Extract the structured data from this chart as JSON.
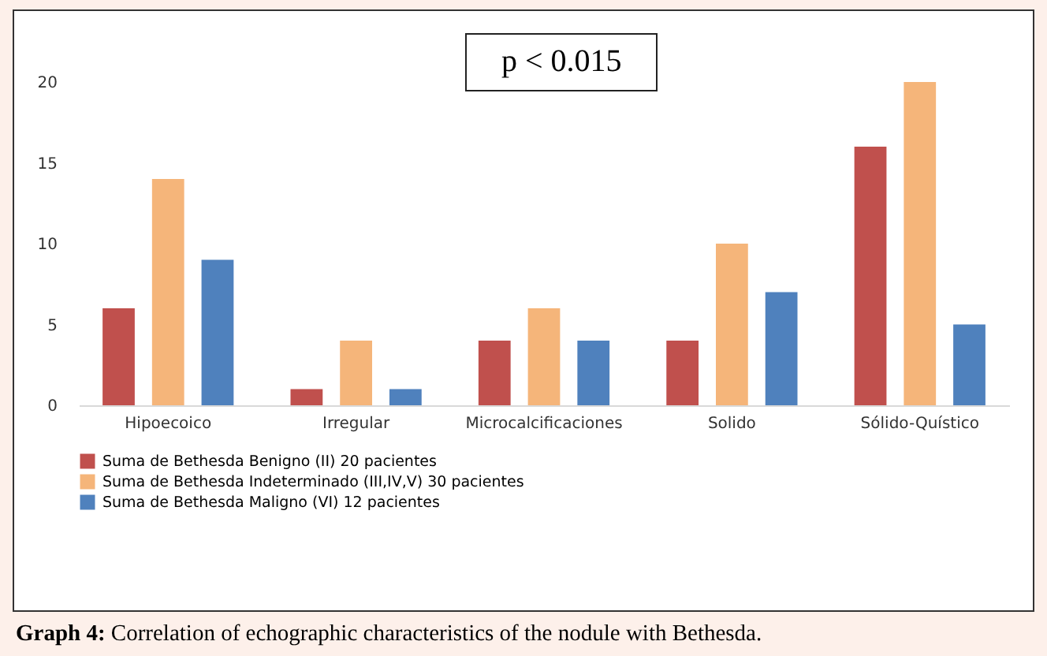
{
  "chart_data": {
    "type": "bar",
    "categories": [
      "Hipoecoico",
      "Irregular",
      "Microcalcificaciones",
      "Solido",
      "Sólido-Quístico"
    ],
    "series": [
      {
        "name": "Suma de Bethesda Benigno (II) 20 pacientes",
        "color": "#c0504d",
        "values": [
          6,
          1,
          4,
          4,
          16
        ]
      },
      {
        "name": "Suma de Bethesda Indeterminado (III,IV,V) 30 pacientes",
        "color": "#f5b57a",
        "values": [
          14,
          4,
          6,
          10,
          20
        ]
      },
      {
        "name": "Suma de Bethesda Maligno (VI) 12 pacientes",
        "color": "#4f81bd",
        "values": [
          9,
          1,
          4,
          7,
          5
        ]
      }
    ],
    "ylim": [
      0,
      20
    ],
    "yticks": [
      0,
      5,
      10,
      15,
      20
    ],
    "grid": false,
    "legend": "bottom",
    "annotations": [
      "p < 0.015",
      "Graph 4: Correlation of echographic characteristics of the nodule with Bethesda."
    ]
  }
}
